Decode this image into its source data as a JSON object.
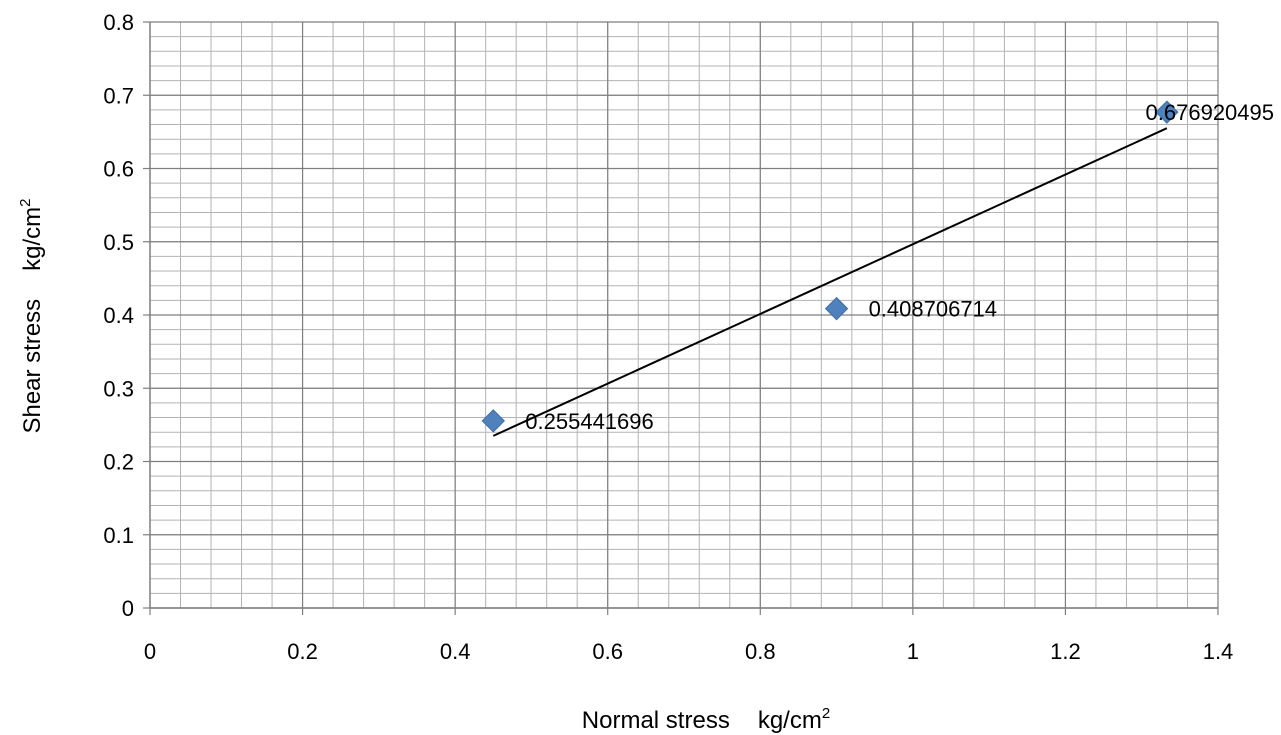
{
  "chart_data": {
    "type": "scatter",
    "title": "",
    "xlabel": "Normal stress",
    "xunit": "kg/cm",
    "xunit_sup": "2",
    "ylabel": "Shear stress",
    "yunit": "kg/cm",
    "yunit_sup": "2",
    "xlim": [
      0,
      1.4
    ],
    "ylim": [
      0,
      0.8
    ],
    "xticks": [
      "0",
      "0.2",
      "0.4",
      "0.6",
      "0.8",
      "1",
      "1.2",
      "1.4"
    ],
    "yticks": [
      "0",
      "0.1",
      "0.2",
      "0.3",
      "0.4",
      "0.5",
      "0.6",
      "0.7",
      "0.8"
    ],
    "grid": true,
    "marker": "diamond",
    "marker_color": "#4f81bd",
    "points": [
      {
        "x": 0.45,
        "y": 0.255441696,
        "label": "0.255441696"
      },
      {
        "x": 0.9,
        "y": 0.408706714,
        "label": "0.408706714"
      },
      {
        "x": 1.333,
        "y": 0.676920495,
        "label": "0.676920495"
      }
    ],
    "trendline": {
      "type": "linear",
      "x": [
        0.45,
        1.333
      ],
      "y": [
        0.235,
        0.655
      ],
      "color": "#000000"
    }
  }
}
